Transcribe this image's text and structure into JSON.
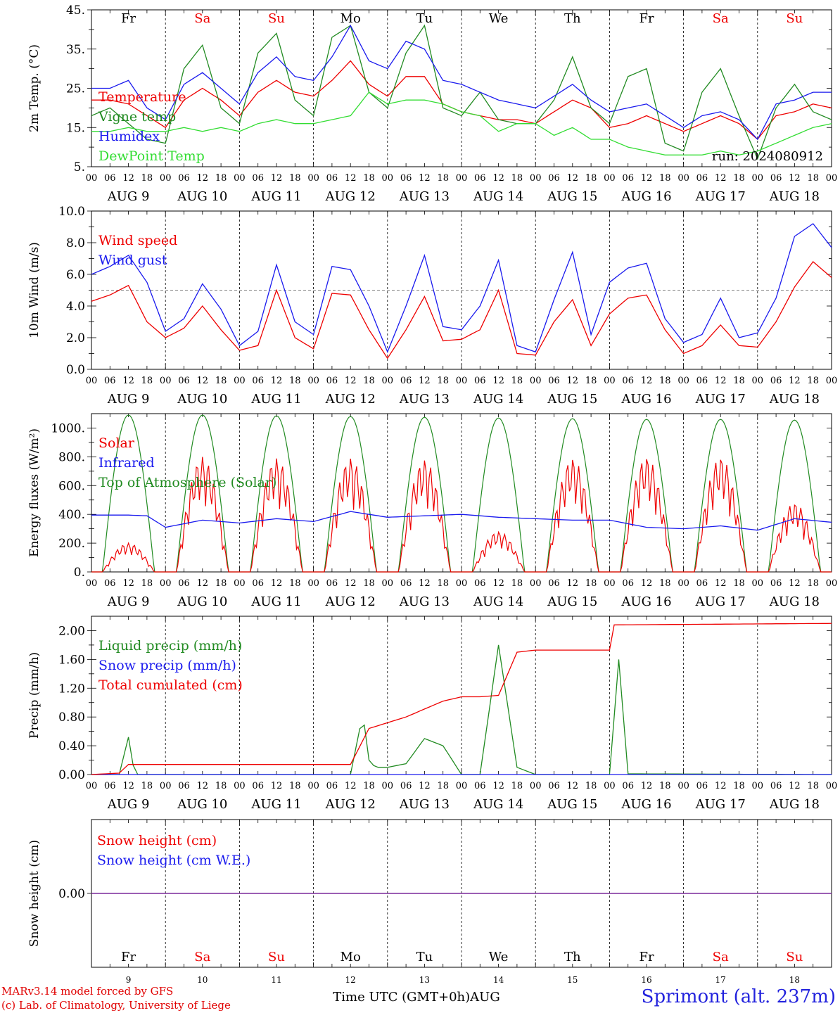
{
  "days": {
    "names": [
      "Fr",
      "Sa",
      "Su",
      "Mo",
      "Tu",
      "We",
      "Th",
      "Fr",
      "Sa",
      "Su"
    ],
    "dates": [
      "AUG  9",
      "AUG 10",
      "AUG 11",
      "AUG 12",
      "AUG 13",
      "AUG 14",
      "AUG 15",
      "AUG 16",
      "AUG 17",
      "AUG 18"
    ],
    "numbers": [
      "9",
      "10",
      "11",
      "12",
      "13",
      "14",
      "15",
      "16",
      "17",
      "18"
    ],
    "weekend": [
      false,
      true,
      true,
      false,
      false,
      false,
      false,
      false,
      true,
      true
    ]
  },
  "hour_ticks": [
    "00",
    "06",
    "12",
    "18"
  ],
  "last_tick": "00",
  "colors": {
    "red": "#ee0000",
    "green": "#228b22",
    "blue": "#1a1aee",
    "lightgreen": "#33dd33",
    "purple": "#7b2a9b"
  },
  "footer": {
    "model": "MARv3.14 model forced by GFS",
    "lab": "(c) Lab. of Climatology, University of Liege",
    "xlabel": "Time UTC (GMT+0h)AUG",
    "site": "Sprimont (alt. 237m)"
  },
  "chart_data": [
    {
      "type": "line",
      "ylabel": "2m Temp. (°C)",
      "ylim": [
        5,
        45
      ],
      "yticks": [
        "5.",
        "15.",
        "25.",
        "35.",
        "45."
      ],
      "annotation": "run: 2024080912",
      "x_unit": "hours since AUG 9 00 UTC",
      "series": [
        {
          "name": "Temperature",
          "color": "red",
          "x": [
            0,
            6,
            12,
            18,
            24,
            30,
            36,
            42,
            48,
            54,
            60,
            66,
            72,
            78,
            84,
            90,
            96,
            102,
            108,
            114,
            120,
            126,
            132,
            138,
            144,
            150,
            156,
            162,
            168,
            174,
            180,
            186,
            192,
            198,
            204,
            210,
            216,
            222,
            228,
            234,
            240
          ],
          "values": [
            22,
            22,
            21,
            18,
            15,
            22,
            25,
            22,
            18,
            24,
            27,
            24,
            23,
            27,
            32,
            26,
            23,
            28,
            28,
            21,
            19,
            18,
            17,
            17,
            16,
            19,
            22,
            20,
            15,
            16,
            18,
            16,
            14,
            16,
            18,
            16,
            12,
            18,
            19,
            21,
            20
          ]
        },
        {
          "name": "Vigne temp",
          "color": "green",
          "x": [
            0,
            6,
            12,
            18,
            24,
            30,
            36,
            42,
            48,
            54,
            60,
            66,
            72,
            78,
            84,
            90,
            96,
            102,
            108,
            114,
            120,
            126,
            132,
            138,
            144,
            150,
            156,
            162,
            168,
            174,
            180,
            186,
            192,
            198,
            204,
            210,
            216,
            222,
            228,
            234,
            240
          ],
          "values": [
            18,
            20,
            16,
            12,
            11,
            30,
            36,
            20,
            16,
            34,
            39,
            22,
            18,
            38,
            41,
            24,
            20,
            34,
            41,
            20,
            18,
            24,
            17,
            16,
            16,
            22,
            33,
            20,
            16,
            28,
            30,
            11,
            9,
            24,
            30,
            18,
            7,
            20,
            26,
            19,
            17
          ]
        },
        {
          "name": "Humidex",
          "color": "blue",
          "x": [
            0,
            6,
            12,
            18,
            24,
            30,
            36,
            42,
            48,
            54,
            60,
            66,
            72,
            78,
            84,
            90,
            96,
            102,
            108,
            114,
            120,
            126,
            132,
            138,
            144,
            150,
            156,
            162,
            168,
            174,
            180,
            186,
            192,
            198,
            204,
            210,
            216,
            222,
            228,
            234,
            240
          ],
          "values": [
            25,
            25,
            27,
            20,
            17,
            26,
            29,
            25,
            21,
            29,
            33,
            28,
            27,
            33,
            41,
            32,
            30,
            37,
            35,
            27,
            26,
            24,
            22,
            21,
            20,
            23,
            26,
            22,
            19,
            20,
            21,
            18,
            15,
            18,
            19,
            17,
            12,
            21,
            22,
            24,
            24
          ]
        },
        {
          "name": "DewPoint Temp",
          "color": "lightgreen",
          "x": [
            0,
            6,
            12,
            18,
            24,
            30,
            36,
            42,
            48,
            54,
            60,
            66,
            72,
            78,
            84,
            90,
            96,
            102,
            108,
            114,
            120,
            126,
            132,
            138,
            144,
            150,
            156,
            162,
            168,
            174,
            180,
            186,
            192,
            198,
            204,
            210,
            216,
            222,
            228,
            234,
            240
          ],
          "values": [
            14,
            14,
            15,
            14,
            14,
            15,
            14,
            15,
            14,
            16,
            17,
            16,
            16,
            17,
            18,
            24,
            21,
            22,
            22,
            21,
            19,
            18,
            14,
            16,
            16,
            13,
            15,
            12,
            12,
            10,
            9,
            8,
            8,
            8,
            9,
            8,
            9,
            11,
            13,
            15,
            16
          ]
        }
      ]
    },
    {
      "type": "line",
      "ylabel": "10m Wind (m/s)",
      "ylim": [
        0,
        10
      ],
      "yticks": [
        "0.0",
        "2.0",
        "4.0",
        "6.0",
        "8.0",
        "10.0"
      ],
      "reference_line": 5.0,
      "x_unit": "hours since AUG 9 00 UTC",
      "series": [
        {
          "name": "Wind speed",
          "color": "red",
          "x": [
            0,
            6,
            12,
            18,
            24,
            30,
            36,
            42,
            48,
            54,
            60,
            66,
            72,
            78,
            84,
            90,
            96,
            102,
            108,
            114,
            120,
            126,
            132,
            138,
            144,
            150,
            156,
            162,
            168,
            174,
            180,
            186,
            192,
            198,
            204,
            210,
            216,
            222,
            228,
            234,
            240
          ],
          "values": [
            4.3,
            4.7,
            5.3,
            3.0,
            2.0,
            2.6,
            4.0,
            2.5,
            1.2,
            1.5,
            5.0,
            2.0,
            1.3,
            4.8,
            4.7,
            2.5,
            0.7,
            2.5,
            4.6,
            1.8,
            1.9,
            2.5,
            5.0,
            1.0,
            0.9,
            3.0,
            4.4,
            1.5,
            3.5,
            4.5,
            4.7,
            2.5,
            1.0,
            1.5,
            2.8,
            1.5,
            1.4,
            3.0,
            5.2,
            6.8,
            5.8
          ]
        },
        {
          "name": "Wind gust",
          "color": "blue",
          "x": [
            0,
            6,
            12,
            18,
            24,
            30,
            36,
            42,
            48,
            54,
            60,
            66,
            72,
            78,
            84,
            90,
            96,
            102,
            108,
            114,
            120,
            126,
            132,
            138,
            144,
            150,
            156,
            162,
            168,
            174,
            180,
            186,
            192,
            198,
            204,
            210,
            216,
            222,
            228,
            234,
            240
          ],
          "values": [
            6.0,
            6.5,
            7.2,
            5.5,
            2.4,
            3.2,
            5.4,
            3.8,
            1.5,
            2.4,
            6.6,
            3.0,
            2.2,
            6.5,
            6.3,
            4.0,
            1.1,
            4.0,
            7.2,
            2.7,
            2.5,
            4.0,
            6.9,
            1.5,
            1.1,
            4.4,
            7.4,
            2.2,
            5.5,
            6.4,
            6.7,
            3.2,
            1.7,
            2.2,
            4.5,
            2.0,
            2.3,
            4.5,
            8.4,
            9.2,
            7.7
          ]
        }
      ]
    },
    {
      "type": "line",
      "ylabel": "Energy fluxes (W/m²)",
      "ylim": [
        0,
        1100
      ],
      "yticks": [
        "0.",
        "200.",
        "400.",
        "600.",
        "800.",
        "1000."
      ],
      "x_unit": "hours since AUG 9 00 UTC",
      "series": [
        {
          "name": "Solar",
          "color": "red",
          "day_peaks": [
            200,
            800,
            790,
            790,
            780,
            280,
            790,
            800,
            800,
            480
          ]
        },
        {
          "name": "Infrared",
          "color": "blue",
          "x": [
            0,
            12,
            18,
            24,
            36,
            48,
            60,
            72,
            84,
            96,
            108,
            120,
            132,
            144,
            156,
            168,
            180,
            192,
            204,
            216,
            228,
            240
          ],
          "values": [
            395,
            395,
            390,
            310,
            360,
            340,
            370,
            350,
            420,
            380,
            390,
            400,
            380,
            370,
            360,
            360,
            310,
            300,
            320,
            290,
            370,
            345
          ]
        },
        {
          "name": "Top of Atmosphere (Solar)",
          "color": "green",
          "day_peaks": [
            1090,
            1090,
            1085,
            1080,
            1075,
            1070,
            1065,
            1060,
            1060,
            1055
          ]
        }
      ]
    },
    {
      "type": "line",
      "ylabel": "Precip (mm/h)",
      "ylim": [
        0,
        2.2
      ],
      "yticks": [
        "0.00",
        "0.40",
        "0.80",
        "1.20",
        "1.60",
        "2.00"
      ],
      "x_unit": "hours since AUG 9 00 UTC",
      "series": [
        {
          "name": "Liquid precip (mm/h)",
          "color": "green",
          "x": [
            0,
            9,
            12,
            14,
            18,
            84,
            88,
            90,
            92,
            96,
            102,
            108,
            114,
            120,
            126,
            132,
            138,
            144,
            168,
            171,
            174,
            240
          ],
          "values": [
            0,
            0,
            0.52,
            0,
            0,
            0,
            0.85,
            0.2,
            0.1,
            0.1,
            0.15,
            0.5,
            0.4,
            0,
            0,
            1.8,
            0.1,
            0,
            0,
            1.6,
            0.01,
            0
          ]
        },
        {
          "name": "Snow precip (mm/h)",
          "color": "blue",
          "x": [
            0,
            240
          ],
          "values": [
            0,
            0
          ]
        },
        {
          "name": "Total cumulated (cm)",
          "color": "red",
          "x": [
            0,
            9,
            12,
            84,
            90,
            102,
            114,
            120,
            126,
            132,
            138,
            144,
            168,
            169,
            240
          ],
          "values": [
            0,
            0.02,
            0.14,
            0.14,
            0.64,
            0.8,
            1.02,
            1.08,
            1.08,
            1.1,
            1.7,
            1.73,
            1.73,
            2.08,
            2.1
          ]
        }
      ]
    },
    {
      "type": "line",
      "ylabel": "Snow height (cm)",
      "ylim": [
        -1,
        1
      ],
      "yticks": [
        "0.00"
      ],
      "x_unit": "hours since AUG 9 00 UTC",
      "series": [
        {
          "name": "Snow height (cm)",
          "color": "red",
          "x": [
            0,
            240
          ],
          "values": [
            0,
            0
          ]
        },
        {
          "name": "Snow height (cm W.E.)",
          "color": "blue",
          "x": [
            0,
            240
          ],
          "values": [
            0,
            0
          ]
        }
      ]
    }
  ]
}
